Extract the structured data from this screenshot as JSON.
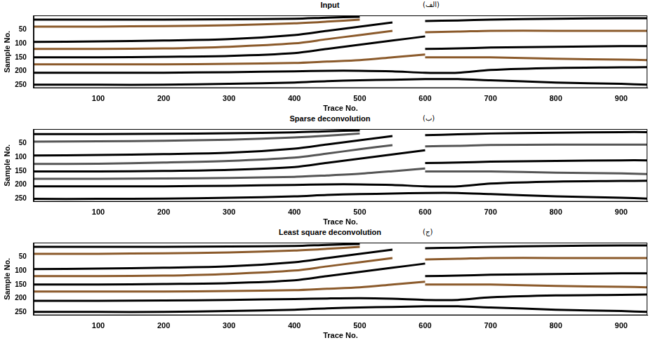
{
  "chart_data": [
    {
      "type": "line",
      "title": "Input",
      "annotation": "(الف)",
      "x_label": "Trace No.",
      "y_label": "Sample No.",
      "x": [
        1,
        100,
        200,
        300,
        400,
        450,
        500,
        550,
        600,
        650,
        700,
        800,
        900,
        940
      ],
      "xlim": [
        1,
        940
      ],
      "xticks": [
        100,
        200,
        300,
        400,
        500,
        600,
        700,
        800,
        900
      ],
      "ylim": [
        260,
        0
      ],
      "yticks": [
        50,
        100,
        150,
        200,
        250
      ],
      "grid": false,
      "marker": "none",
      "series": [
        {
          "color": "#000000",
          "values": [
            15,
            15,
            15,
            14,
            12,
            8,
            5,
            null,
            null,
            null,
            null,
            null,
            null,
            null
          ]
        },
        {
          "color": "#8b5a2b",
          "values": [
            40,
            40,
            38,
            35,
            28,
            22,
            15,
            null,
            null,
            null,
            null,
            null,
            null,
            null
          ]
        },
        {
          "color": "#000000",
          "values": [
            95,
            93,
            90,
            85,
            70,
            55,
            40,
            25,
            null,
            null,
            null,
            null,
            null,
            null
          ]
        },
        {
          "color": "#8b5a2b",
          "values": [
            120,
            120,
            118,
            112,
            100,
            85,
            70,
            55,
            null,
            null,
            null,
            null,
            null,
            null
          ]
        },
        {
          "color": "#000000",
          "values": [
            150,
            150,
            148,
            145,
            135,
            120,
            105,
            90,
            75,
            null,
            null,
            null,
            null,
            null
          ]
        },
        {
          "color": "#8b5a2b",
          "values": [
            175,
            175,
            175,
            173,
            170,
            165,
            160,
            150,
            140,
            null,
            null,
            null,
            null,
            null
          ]
        },
        {
          "color": "#000000",
          "values": [
            205,
            205,
            205,
            203,
            200,
            198,
            198,
            200,
            205,
            205,
            195,
            188,
            186,
            185
          ]
        },
        {
          "color": "#000000",
          "values": [
            248,
            248,
            248,
            245,
            240,
            235,
            232,
            230,
            228,
            228,
            232,
            240,
            245,
            248
          ]
        },
        {
          "color": "#000000",
          "values": [
            null,
            null,
            null,
            null,
            null,
            null,
            null,
            null,
            20,
            18,
            15,
            12,
            10,
            10
          ]
        },
        {
          "color": "#8b5a2b",
          "values": [
            null,
            null,
            null,
            null,
            null,
            null,
            null,
            null,
            60,
            58,
            55,
            55,
            55,
            55
          ]
        },
        {
          "color": "#000000",
          "values": [
            null,
            null,
            null,
            null,
            null,
            null,
            null,
            null,
            120,
            118,
            115,
            112,
            110,
            110
          ]
        },
        {
          "color": "#8b5a2b",
          "values": [
            null,
            null,
            null,
            null,
            null,
            null,
            null,
            null,
            150,
            150,
            150,
            155,
            158,
            160
          ]
        }
      ]
    },
    {
      "type": "line",
      "title": "Sparse deconvolution",
      "annotation": "(ب)",
      "x_label": "Trace No.",
      "y_label": "Sample No.",
      "x": [
        1,
        100,
        200,
        300,
        400,
        450,
        500,
        550,
        600,
        650,
        700,
        800,
        900,
        940
      ],
      "xlim": [
        1,
        940
      ],
      "xticks": [
        100,
        200,
        300,
        400,
        500,
        600,
        700,
        800,
        900
      ],
      "ylim": [
        260,
        0
      ],
      "yticks": [
        50,
        100,
        150,
        200,
        250
      ],
      "grid": false,
      "marker": "none",
      "series": [
        {
          "color": "#000000",
          "values": [
            18,
            18,
            17,
            15,
            12,
            8,
            5,
            null,
            null,
            null,
            null,
            null,
            null,
            null
          ]
        },
        {
          "color": "#555555",
          "values": [
            45,
            44,
            42,
            38,
            30,
            24,
            16,
            null,
            null,
            null,
            null,
            null,
            null,
            null
          ]
        },
        {
          "color": "#000000",
          "values": [
            95,
            93,
            90,
            85,
            70,
            55,
            40,
            25,
            null,
            null,
            null,
            null,
            null,
            null
          ]
        },
        {
          "color": "#555555",
          "values": [
            125,
            124,
            120,
            114,
            102,
            88,
            72,
            58,
            null,
            null,
            null,
            null,
            null,
            null
          ]
        },
        {
          "color": "#000000",
          "values": [
            152,
            152,
            150,
            146,
            136,
            121,
            106,
            91,
            76,
            null,
            null,
            null,
            null,
            null
          ]
        },
        {
          "color": "#555555",
          "values": [
            178,
            178,
            177,
            175,
            171,
            166,
            160,
            151,
            141,
            null,
            null,
            null,
            null,
            null
          ]
        },
        {
          "color": "#000000",
          "values": [
            205,
            205,
            205,
            203,
            200,
            198,
            198,
            200,
            205,
            205,
            195,
            188,
            186,
            185
          ]
        },
        {
          "color": "#000000",
          "values": [
            250,
            250,
            249,
            246,
            241,
            236,
            233,
            231,
            229,
            229,
            233,
            241,
            246,
            249
          ]
        },
        {
          "color": "#000000",
          "values": [
            null,
            null,
            null,
            null,
            null,
            null,
            null,
            null,
            22,
            19,
            16,
            13,
            11,
            11
          ]
        },
        {
          "color": "#555555",
          "values": [
            null,
            null,
            null,
            null,
            null,
            null,
            null,
            null,
            62,
            60,
            57,
            56,
            56,
            56
          ]
        },
        {
          "color": "#000000",
          "values": [
            null,
            null,
            null,
            null,
            null,
            null,
            null,
            null,
            122,
            120,
            117,
            114,
            112,
            112
          ]
        },
        {
          "color": "#555555",
          "values": [
            null,
            null,
            null,
            null,
            null,
            null,
            null,
            null,
            152,
            152,
            152,
            156,
            159,
            161
          ]
        }
      ]
    },
    {
      "type": "line",
      "title": "Least square deconvolution",
      "annotation": "(ج)",
      "x_label": "Trace No.",
      "y_label": "Sample No.",
      "x": [
        1,
        100,
        200,
        300,
        400,
        450,
        500,
        550,
        600,
        650,
        700,
        800,
        900,
        940
      ],
      "xlim": [
        1,
        940
      ],
      "xticks": [
        100,
        200,
        300,
        400,
        500,
        600,
        700,
        800,
        900
      ],
      "ylim": [
        260,
        0
      ],
      "yticks": [
        50,
        100,
        150,
        200,
        250
      ],
      "grid": false,
      "marker": "none",
      "series": [
        {
          "color": "#000000",
          "values": [
            15,
            15,
            15,
            14,
            12,
            8,
            5,
            null,
            null,
            null,
            null,
            null,
            null,
            null
          ]
        },
        {
          "color": "#8b5a2b",
          "values": [
            40,
            40,
            38,
            35,
            28,
            22,
            15,
            null,
            null,
            null,
            null,
            null,
            null,
            null
          ]
        },
        {
          "color": "#000000",
          "values": [
            95,
            93,
            90,
            85,
            70,
            55,
            40,
            25,
            null,
            null,
            null,
            null,
            null,
            null
          ]
        },
        {
          "color": "#8b5a2b",
          "values": [
            120,
            120,
            118,
            112,
            100,
            85,
            70,
            55,
            null,
            null,
            null,
            null,
            null,
            null
          ]
        },
        {
          "color": "#000000",
          "values": [
            150,
            150,
            148,
            145,
            135,
            120,
            105,
            90,
            75,
            null,
            null,
            null,
            null,
            null
          ]
        },
        {
          "color": "#8b5a2b",
          "values": [
            175,
            175,
            175,
            173,
            170,
            165,
            160,
            150,
            140,
            null,
            null,
            null,
            null,
            null
          ]
        },
        {
          "color": "#000000",
          "values": [
            208,
            208,
            207,
            205,
            202,
            200,
            199,
            201,
            205,
            205,
            196,
            189,
            187,
            186
          ]
        },
        {
          "color": "#000000",
          "values": [
            248,
            248,
            248,
            245,
            240,
            235,
            232,
            230,
            228,
            228,
            232,
            240,
            245,
            248
          ]
        },
        {
          "color": "#000000",
          "values": [
            null,
            null,
            null,
            null,
            null,
            null,
            null,
            null,
            20,
            18,
            15,
            12,
            10,
            10
          ]
        },
        {
          "color": "#8b5a2b",
          "values": [
            null,
            null,
            null,
            null,
            null,
            null,
            null,
            null,
            60,
            58,
            55,
            55,
            55,
            55
          ]
        },
        {
          "color": "#000000",
          "values": [
            null,
            null,
            null,
            null,
            null,
            null,
            null,
            null,
            120,
            118,
            115,
            112,
            110,
            110
          ]
        },
        {
          "color": "#8b5a2b",
          "values": [
            null,
            null,
            null,
            null,
            null,
            null,
            null,
            null,
            150,
            150,
            150,
            155,
            158,
            160
          ]
        }
      ]
    }
  ]
}
